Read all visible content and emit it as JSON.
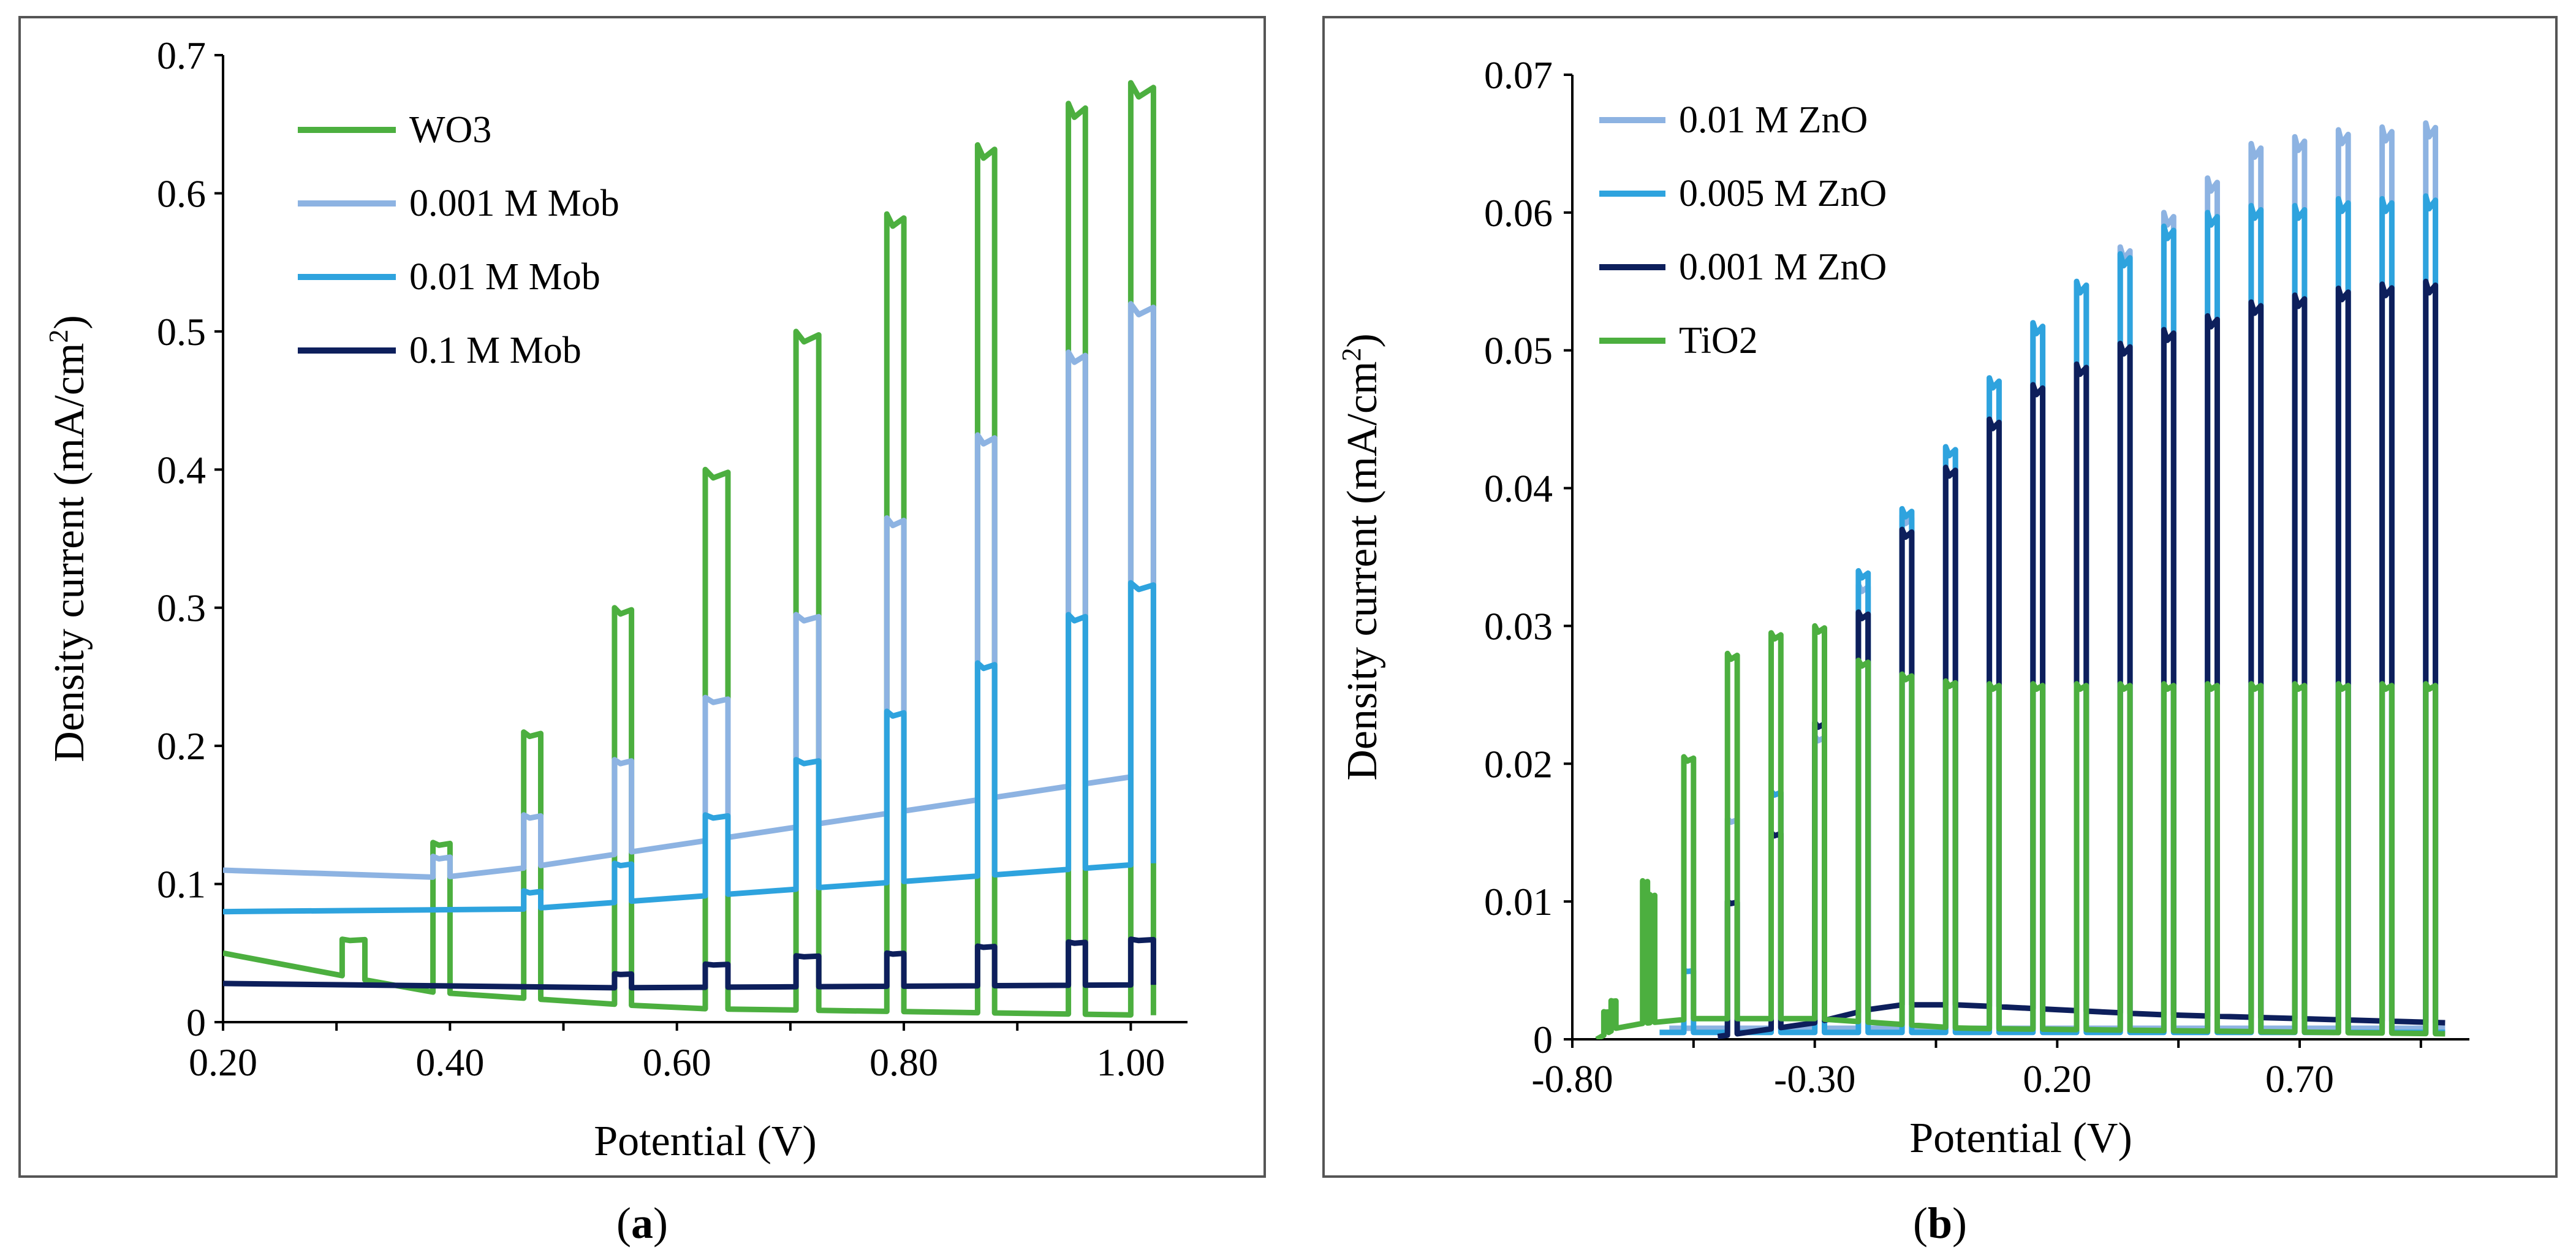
{
  "chart_data": [
    {
      "panel": "a",
      "type": "line",
      "caption_open": "(",
      "caption_letter": "a",
      "caption_close": ")",
      "xlabel": "Potential (V)",
      "ylabel_main": "Density current (mA/cm",
      "ylabel_sup": "2",
      "ylabel_close": ")",
      "xlim": [
        0.2,
        1.05
      ],
      "ylim": [
        0,
        0.7
      ],
      "x_tick_values": [
        0.2,
        0.4,
        0.6,
        0.8,
        1.0
      ],
      "x_tick_labels": [
        "0.20",
        "0.40",
        "0.60",
        "0.80",
        "1.00"
      ],
      "y_tick_values": [
        0,
        0.1,
        0.2,
        0.3,
        0.4,
        0.5,
        0.6,
        0.7
      ],
      "y_tick_labels": [
        "0",
        "0.1",
        "0.2",
        "0.3",
        "0.4",
        "0.5",
        "0.6",
        "0.7"
      ],
      "legend_position": "top-left",
      "series": [
        {
          "name": "WO3",
          "color": "#4caf3f",
          "baseline": [
            [
              0.2,
              0.05
            ],
            [
              0.38,
              0.022
            ],
            [
              0.6,
              0.01
            ],
            [
              1.02,
              0.005
            ]
          ],
          "pulses": [
            [
              0.305,
              0.325,
              0.06
            ],
            [
              0.385,
              0.4,
              0.13
            ],
            [
              0.465,
              0.48,
              0.21
            ],
            [
              0.545,
              0.56,
              0.3
            ],
            [
              0.625,
              0.645,
              0.4
            ],
            [
              0.705,
              0.725,
              0.5
            ],
            [
              0.785,
              0.8,
              0.585
            ],
            [
              0.865,
              0.88,
              0.635
            ],
            [
              0.945,
              0.96,
              0.665
            ],
            [
              1.0,
              1.02,
              0.68
            ]
          ]
        },
        {
          "name": "0.001 M Mob",
          "color": "#8db3e2",
          "baseline": [
            [
              0.2,
              0.11
            ],
            [
              0.32,
              0.103
            ],
            [
              0.42,
              0.106
            ],
            [
              1.02,
              0.18
            ]
          ],
          "pulses": [
            [
              0.385,
              0.4,
              0.12
            ],
            [
              0.465,
              0.48,
              0.15
            ],
            [
              0.545,
              0.56,
              0.19
            ],
            [
              0.625,
              0.645,
              0.235
            ],
            [
              0.705,
              0.725,
              0.295
            ],
            [
              0.785,
              0.8,
              0.365
            ],
            [
              0.865,
              0.88,
              0.425
            ],
            [
              0.945,
              0.96,
              0.485
            ],
            [
              1.0,
              1.02,
              0.52
            ]
          ]
        },
        {
          "name": "0.01 M  Mob",
          "color": "#2ea3de",
          "baseline": [
            [
              0.2,
              0.08
            ],
            [
              0.28,
              0.085
            ],
            [
              0.4,
              0.078
            ],
            [
              1.02,
              0.115
            ]
          ],
          "pulses": [
            [
              0.465,
              0.48,
              0.095
            ],
            [
              0.545,
              0.56,
              0.115
            ],
            [
              0.625,
              0.645,
              0.15
            ],
            [
              0.705,
              0.725,
              0.19
            ],
            [
              0.785,
              0.8,
              0.225
            ],
            [
              0.865,
              0.88,
              0.26
            ],
            [
              0.945,
              0.96,
              0.295
            ],
            [
              1.0,
              1.02,
              0.318
            ]
          ]
        },
        {
          "name": "0.1 M Mob",
          "color": "#0d1f5c",
          "baseline": [
            [
              0.2,
              0.028
            ],
            [
              0.35,
              0.024
            ],
            [
              1.02,
              0.027
            ]
          ],
          "pulses": [
            [
              0.545,
              0.56,
              0.035
            ],
            [
              0.625,
              0.645,
              0.042
            ],
            [
              0.705,
              0.725,
              0.048
            ],
            [
              0.785,
              0.8,
              0.05
            ],
            [
              0.865,
              0.88,
              0.055
            ],
            [
              0.945,
              0.96,
              0.058
            ],
            [
              1.0,
              1.02,
              0.06
            ]
          ]
        }
      ]
    },
    {
      "panel": "b",
      "type": "line",
      "caption_open": "(",
      "caption_letter": "b",
      "caption_close": ")",
      "xlabel": "Potential (V)",
      "ylabel_main": "Density current (mA/cm",
      "ylabel_sup": "2",
      "ylabel_close": ")",
      "xlim": [
        -0.8,
        1.05
      ],
      "ylim": [
        0,
        0.07
      ],
      "x_tick_values": [
        -0.8,
        -0.3,
        0.2,
        0.7
      ],
      "x_tick_labels": [
        "-0.80",
        "-0.30",
        "0.20",
        "0.70"
      ],
      "y_tick_values": [
        0,
        0.01,
        0.02,
        0.03,
        0.04,
        0.05,
        0.06,
        0.07
      ],
      "y_tick_labels": [
        "0",
        "0.01",
        "0.02",
        "0.03",
        "0.04",
        "0.05",
        "0.06",
        "0.07"
      ],
      "legend_position": "top-left",
      "series": [
        {
          "name": "0.01 M ZnO",
          "color": "#8db3e2",
          "baseline": [
            [
              -0.6,
              0.0008
            ],
            [
              1.0,
              0.0008
            ]
          ],
          "pulses": [
            [
              -0.48,
              -0.46,
              0.016
            ],
            [
              -0.39,
              -0.37,
              0.018
            ],
            [
              -0.3,
              -0.28,
              0.022
            ],
            [
              -0.21,
              -0.19,
              0.033
            ],
            [
              -0.12,
              -0.1,
              0.038
            ],
            [
              -0.03,
              -0.01,
              0.043
            ],
            [
              0.06,
              0.08,
              0.048
            ],
            [
              0.15,
              0.17,
              0.052
            ],
            [
              0.24,
              0.26,
              0.055
            ],
            [
              0.33,
              0.35,
              0.0575
            ],
            [
              0.42,
              0.44,
              0.06
            ],
            [
              0.51,
              0.53,
              0.0625
            ],
            [
              0.6,
              0.62,
              0.065
            ],
            [
              0.69,
              0.71,
              0.0655
            ],
            [
              0.78,
              0.8,
              0.066
            ],
            [
              0.87,
              0.89,
              0.0662
            ],
            [
              0.96,
              0.98,
              0.0665
            ]
          ]
        },
        {
          "name": "0.005 M ZnO",
          "color": "#2ea3de",
          "baseline": [
            [
              -0.62,
              0.0005
            ],
            [
              1.0,
              0.0005
            ]
          ],
          "pulses": [
            [
              -0.57,
              -0.55,
              0.005
            ],
            [
              -0.48,
              -0.46,
              0.01
            ],
            [
              -0.39,
              -0.37,
              0.018
            ],
            [
              -0.3,
              -0.28,
              0.023
            ],
            [
              -0.21,
              -0.19,
              0.034
            ],
            [
              -0.12,
              -0.1,
              0.0385
            ],
            [
              -0.03,
              -0.01,
              0.043
            ],
            [
              0.06,
              0.08,
              0.048
            ],
            [
              0.15,
              0.17,
              0.052
            ],
            [
              0.24,
              0.26,
              0.055
            ],
            [
              0.33,
              0.35,
              0.057
            ],
            [
              0.42,
              0.44,
              0.059
            ],
            [
              0.51,
              0.53,
              0.06
            ],
            [
              0.6,
              0.62,
              0.0605
            ],
            [
              0.69,
              0.71,
              0.0605
            ],
            [
              0.78,
              0.8,
              0.061
            ],
            [
              0.87,
              0.89,
              0.061
            ],
            [
              0.96,
              0.98,
              0.0612
            ]
          ]
        },
        {
          "name": "0.001 M ZnO",
          "color": "#0d1f5c",
          "baseline": [
            [
              -0.5,
              0.0002
            ],
            [
              -0.3,
              0.0012
            ],
            [
              -0.15,
              0.0025
            ],
            [
              0.0,
              0.0025
            ],
            [
              0.4,
              0.0018
            ],
            [
              1.0,
              0.0012
            ]
          ],
          "pulses": [
            [
              -0.48,
              -0.46,
              0.01
            ],
            [
              -0.39,
              -0.37,
              0.015
            ],
            [
              -0.3,
              -0.28,
              0.023
            ],
            [
              -0.21,
              -0.19,
              0.031
            ],
            [
              -0.12,
              -0.1,
              0.037
            ],
            [
              -0.03,
              -0.01,
              0.0415
            ],
            [
              0.06,
              0.08,
              0.045
            ],
            [
              0.15,
              0.17,
              0.0475
            ],
            [
              0.24,
              0.26,
              0.049
            ],
            [
              0.33,
              0.35,
              0.0505
            ],
            [
              0.42,
              0.44,
              0.0515
            ],
            [
              0.51,
              0.53,
              0.0525
            ],
            [
              0.6,
              0.62,
              0.0535
            ],
            [
              0.69,
              0.71,
              0.054
            ],
            [
              0.78,
              0.8,
              0.0545
            ],
            [
              0.87,
              0.89,
              0.0548
            ],
            [
              0.96,
              0.98,
              0.055
            ]
          ]
        },
        {
          "name": "TiO2",
          "color": "#4caf3f",
          "baseline": [
            [
              -0.75,
              0.0
            ],
            [
              -0.7,
              0.001
            ],
            [
              -0.55,
              0.0015
            ],
            [
              -0.3,
              0.0015
            ],
            [
              0.0,
              0.0008
            ],
            [
              1.0,
              0.0004
            ]
          ],
          "pulses": [
            [
              -0.735,
              -0.725,
              0.002
            ],
            [
              -0.72,
              -0.71,
              0.0028
            ],
            [
              -0.655,
              -0.645,
              0.0115
            ],
            [
              -0.64,
              -0.63,
              0.0105
            ],
            [
              -0.57,
              -0.55,
              0.0205
            ],
            [
              -0.48,
              -0.46,
              0.028
            ],
            [
              -0.39,
              -0.37,
              0.0295
            ],
            [
              -0.3,
              -0.28,
              0.03
            ],
            [
              -0.21,
              -0.19,
              0.0275
            ],
            [
              -0.12,
              -0.1,
              0.0265
            ],
            [
              -0.03,
              -0.01,
              0.026
            ],
            [
              0.06,
              0.08,
              0.0258
            ],
            [
              0.15,
              0.17,
              0.0258
            ],
            [
              0.24,
              0.26,
              0.0258
            ],
            [
              0.33,
              0.35,
              0.0258
            ],
            [
              0.42,
              0.44,
              0.0258
            ],
            [
              0.51,
              0.53,
              0.0258
            ],
            [
              0.6,
              0.62,
              0.0258
            ],
            [
              0.69,
              0.71,
              0.0258
            ],
            [
              0.78,
              0.8,
              0.0258
            ],
            [
              0.87,
              0.89,
              0.0258
            ],
            [
              0.96,
              0.98,
              0.0258
            ]
          ]
        }
      ]
    }
  ]
}
